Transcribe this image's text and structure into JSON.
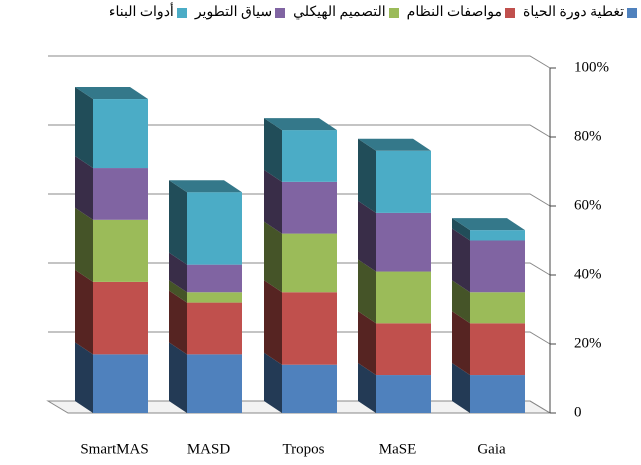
{
  "chart_data": {
    "type": "bar",
    "stacked": true,
    "categories": [
      "SmartMAS",
      "MASD",
      "Tropos",
      "MaSE",
      "Gaia"
    ],
    "series": [
      {
        "name": "تغطية دورة الحياة",
        "color": "#4f81bd",
        "values": [
          17,
          17,
          14,
          11,
          11
        ]
      },
      {
        "name": "مواصفات النظام",
        "color": "#c0504d",
        "values": [
          21,
          15,
          21,
          15,
          15
        ]
      },
      {
        "name": "التصميم الهيكلي",
        "color": "#9bbb59",
        "values": [
          18,
          3,
          17,
          15,
          9
        ]
      },
      {
        "name": "سياق التطوير",
        "color": "#8064a2",
        "values": [
          15,
          8,
          15,
          17,
          15
        ]
      },
      {
        "name": "أدوات البناء",
        "color": "#4bacc6",
        "values": [
          20,
          21,
          15,
          18,
          3
        ]
      }
    ],
    "ylim": [
      0,
      100
    ],
    "yticks": [
      0,
      {
        "value": 20,
        "label": "20%"
      },
      {
        "value": 40,
        "label": "40%"
      },
      {
        "value": 60,
        "label": "60%"
      },
      {
        "value": 80,
        "label": "80%"
      },
      {
        "value": 100,
        "label": "100%"
      }
    ],
    "grid": true,
    "legend": "top"
  }
}
